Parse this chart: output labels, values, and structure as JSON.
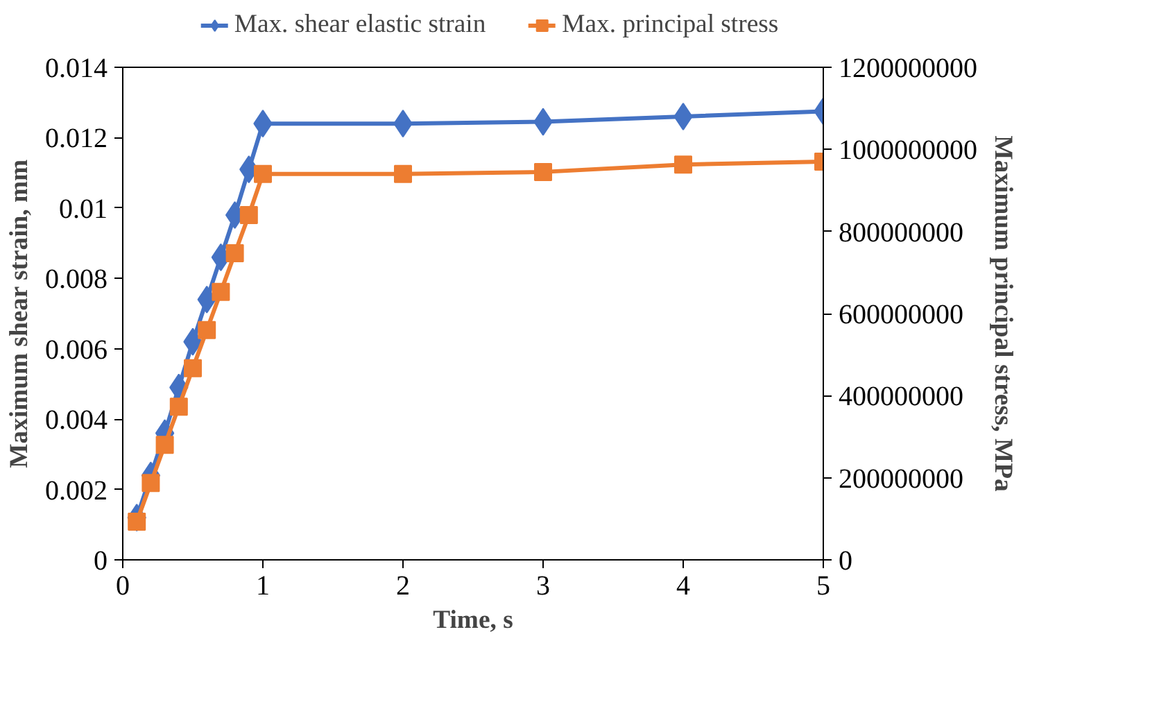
{
  "chart_data": {
    "type": "line",
    "xlabel": "Time, s",
    "ylabel": "Maximum shear strain, mm",
    "y2label": "Maximum principal stress, MPa",
    "x": [
      0.1,
      0.2,
      0.3,
      0.4,
      0.5,
      0.6,
      0.7,
      0.8,
      0.9,
      1,
      2,
      3,
      4,
      5
    ],
    "series": [
      {
        "name": "Max. shear elastic strain",
        "color": "#4472c4",
        "marker": "diamond",
        "values": [
          0.0012,
          0.0024,
          0.0036,
          0.0049,
          0.0062,
          0.0074,
          0.0086,
          0.0098,
          0.0111,
          0.0124,
          0.0124,
          0.01245,
          0.0126,
          0.01275
        ]
      },
      {
        "name": "Max. principal stress",
        "color": "#ed7d31",
        "marker": "square",
        "axis": "y2",
        "values": [
          93000000,
          187000000,
          280000000,
          373000000,
          467000000,
          560000000,
          653000000,
          747000000,
          840000000,
          940000000,
          940000000,
          945000000,
          963000000,
          970000000
        ]
      }
    ],
    "xlim": [
      0,
      5
    ],
    "xticks": [
      0,
      1,
      2,
      3,
      4,
      5
    ],
    "ylim": [
      0,
      0.014
    ],
    "yticks": [
      0,
      0.002,
      0.004,
      0.006,
      0.008,
      0.01,
      0.012,
      0.014
    ],
    "y2lim": [
      0,
      1200000000
    ],
    "y2ticks": [
      0,
      200000000,
      400000000,
      600000000,
      800000000,
      1000000000,
      1200000000
    ],
    "grid": false,
    "legend": "top",
    "line_style": "solid"
  }
}
